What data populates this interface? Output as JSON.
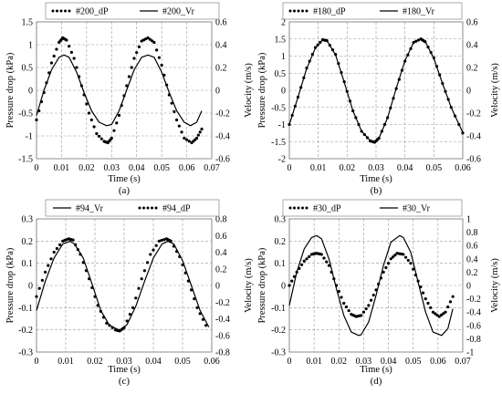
{
  "chart_data": [
    {
      "type": "line",
      "panel_label": "(a)",
      "xlabel": "Time (s)",
      "ylabel_left": "Pressure drop (kPa)",
      "ylabel_right": "Velocity (m/s)",
      "xlim": [
        0,
        0.07
      ],
      "ylim_left": [
        -1.5,
        1.5
      ],
      "ylim_right": [
        -0.6,
        0.6
      ],
      "x_ticks": [
        "0",
        "0.01",
        "0.02",
        "0.03",
        "0.04",
        "0.05",
        "0.06",
        "0.07"
      ],
      "y_ticks_left": [
        "-1.5",
        "-1",
        "-0.5",
        "0",
        "0.5",
        "1",
        "1.5"
      ],
      "y_ticks_right": [
        "-0.6",
        "-0.4",
        "-0.2",
        "0",
        "0.2",
        "0.4",
        "0.6"
      ],
      "grid": true,
      "legend_position": "top",
      "series": [
        {
          "name": "#200_dP",
          "axis": "left",
          "style": "dotted",
          "x": [
            0,
            0.003,
            0.006,
            0.009,
            0.0105,
            0.012,
            0.015,
            0.018,
            0.021,
            0.024,
            0.027,
            0.0285,
            0.03,
            0.033,
            0.036,
            0.039,
            0.042,
            0.0445,
            0.047,
            0.05,
            0.053,
            0.056,
            0.059,
            0.062,
            0.064,
            0.066
          ],
          "y": [
            -0.65,
            -0.05,
            0.6,
            1.05,
            1.15,
            1.1,
            0.7,
            0.1,
            -0.5,
            -0.95,
            -1.12,
            -1.15,
            -1.05,
            -0.55,
            0.1,
            0.7,
            1.08,
            1.15,
            1.05,
            0.55,
            -0.1,
            -0.65,
            -1.05,
            -1.15,
            -1.05,
            -0.85
          ]
        },
        {
          "name": "#200_Vr",
          "axis": "right",
          "style": "solid",
          "x": [
            0,
            0.003,
            0.006,
            0.009,
            0.011,
            0.013,
            0.016,
            0.019,
            0.022,
            0.025,
            0.028,
            0.03,
            0.033,
            0.036,
            0.039,
            0.042,
            0.0445,
            0.047,
            0.05,
            0.053,
            0.056,
            0.059,
            0.0615,
            0.064,
            0.066
          ],
          "y": [
            -0.22,
            0.0,
            0.18,
            0.29,
            0.31,
            0.29,
            0.16,
            -0.02,
            -0.18,
            -0.28,
            -0.31,
            -0.3,
            -0.18,
            0.0,
            0.18,
            0.29,
            0.31,
            0.29,
            0.16,
            -0.02,
            -0.18,
            -0.28,
            -0.31,
            -0.28,
            -0.18
          ]
        }
      ]
    },
    {
      "type": "line",
      "panel_label": "(b)",
      "xlabel": "Time (s)",
      "ylabel_left": "Pressure drop (kPa)",
      "ylabel_right": "Velocity (m/s)",
      "xlim": [
        0,
        0.06
      ],
      "ylim_left": [
        -2,
        2
      ],
      "ylim_right": [
        -0.6,
        0.6
      ],
      "x_ticks": [
        "0",
        "0.01",
        "0.02",
        "0.03",
        "0.04",
        "0.05",
        "0.06"
      ],
      "y_ticks_left": [
        "-2",
        "-1.5",
        "-1",
        "-0.5",
        "0",
        "0.5",
        "1",
        "1.5",
        "2"
      ],
      "y_ticks_right": [
        "-0.6",
        "-0.4",
        "-0.2",
        "0",
        "0.2",
        "0.4",
        "0.6"
      ],
      "grid": true,
      "legend_position": "top",
      "series": [
        {
          "name": "#180_dP",
          "axis": "left",
          "style": "dotted",
          "x": [
            0,
            0.003,
            0.006,
            0.009,
            0.0115,
            0.013,
            0.016,
            0.019,
            0.022,
            0.025,
            0.028,
            0.0295,
            0.031,
            0.034,
            0.037,
            0.04,
            0.043,
            0.0455,
            0.047,
            0.05,
            0.053,
            0.056,
            0.06
          ],
          "y": [
            -1.0,
            -0.2,
            0.65,
            1.25,
            1.48,
            1.45,
            1.05,
            0.25,
            -0.6,
            -1.2,
            -1.48,
            -1.52,
            -1.4,
            -0.8,
            0.05,
            0.85,
            1.4,
            1.5,
            1.42,
            0.95,
            0.2,
            -0.5,
            -1.25
          ]
        },
        {
          "name": "#180_Vr",
          "axis": "right",
          "style": "solid",
          "x": [
            0,
            0.003,
            0.006,
            0.009,
            0.0115,
            0.013,
            0.016,
            0.019,
            0.022,
            0.025,
            0.028,
            0.0295,
            0.031,
            0.034,
            0.037,
            0.04,
            0.043,
            0.0455,
            0.047,
            0.05,
            0.053,
            0.056,
            0.06
          ],
          "y": [
            -0.3,
            -0.06,
            0.19,
            0.37,
            0.44,
            0.435,
            0.31,
            0.07,
            -0.18,
            -0.36,
            -0.44,
            -0.45,
            -0.42,
            -0.24,
            0.02,
            0.26,
            0.42,
            0.45,
            0.43,
            0.28,
            0.06,
            -0.15,
            -0.37
          ]
        }
      ]
    },
    {
      "type": "line",
      "panel_label": "(c)",
      "xlabel": "Time (s)",
      "ylabel_left": "Pressure drop (kPa)",
      "ylabel_right": "Velocity (m/s)",
      "xlim": [
        0,
        0.06
      ],
      "ylim_left": [
        -0.3,
        0.3
      ],
      "ylim_right": [
        -0.8,
        0.8
      ],
      "x_ticks": [
        "0",
        "0.01",
        "0.02",
        "0.03",
        "0.04",
        "0.05",
        "0.06"
      ],
      "y_ticks_left": [
        "-0.3",
        "-0.2",
        "-0.1",
        "0",
        "0.1",
        "0.2",
        "0.3"
      ],
      "y_ticks_right": [
        "-0.8",
        "-0.6",
        "-0.4",
        "-0.2",
        "0",
        "0.2",
        "0.4",
        "0.6",
        "0.8"
      ],
      "grid": true,
      "legend_position": "top",
      "series": [
        {
          "name": "#94_Vr",
          "axis": "right",
          "style": "solid",
          "x": [
            0,
            0.003,
            0.006,
            0.009,
            0.0115,
            0.013,
            0.016,
            0.019,
            0.022,
            0.025,
            0.028,
            0.029,
            0.031,
            0.034,
            0.037,
            0.04,
            0.043,
            0.045,
            0.047,
            0.05,
            0.053,
            0.056,
            0.059
          ],
          "y": [
            -0.3,
            0.05,
            0.33,
            0.5,
            0.53,
            0.5,
            0.33,
            0.02,
            -0.3,
            -0.48,
            -0.53,
            -0.53,
            -0.47,
            -0.25,
            0.05,
            0.33,
            0.5,
            0.53,
            0.5,
            0.3,
            0.0,
            -0.3,
            -0.5
          ]
        },
        {
          "name": "#94_dP",
          "axis": "left",
          "style": "dotted",
          "x": [
            0,
            0.003,
            0.006,
            0.009,
            0.011,
            0.0125,
            0.015,
            0.018,
            0.021,
            0.024,
            0.027,
            0.0285,
            0.03,
            0.033,
            0.036,
            0.039,
            0.042,
            0.0445,
            0.046,
            0.049,
            0.052,
            0.055,
            0.058
          ],
          "y": [
            -0.05,
            0.06,
            0.15,
            0.2,
            0.21,
            0.205,
            0.14,
            0.03,
            -0.09,
            -0.17,
            -0.2,
            -0.205,
            -0.19,
            -0.1,
            0.03,
            0.14,
            0.2,
            0.21,
            0.2,
            0.13,
            0.02,
            -0.1,
            -0.18
          ]
        }
      ]
    },
    {
      "type": "line",
      "panel_label": "(d)",
      "xlabel": "Time (s)",
      "ylabel_left": "Pressure drop (kPa)",
      "ylabel_right": "Velocity (m/s)",
      "xlim": [
        0,
        0.07
      ],
      "ylim_left": [
        -0.3,
        0.3
      ],
      "ylim_right": [
        -1,
        1
      ],
      "x_ticks": [
        "0",
        "0.01",
        "0.02",
        "0.03",
        "0.04",
        "0.05",
        "0.06",
        "0.07"
      ],
      "y_ticks_left": [
        "-0.3",
        "-0.2",
        "-0.1",
        "0",
        "0.1",
        "0.2",
        "0.3"
      ],
      "y_ticks_right": [
        "-1",
        "-0.8",
        "-0.6",
        "-0.4",
        "-0.2",
        "0",
        "0.2",
        "0.4",
        "0.6",
        "0.8",
        "1"
      ],
      "grid": true,
      "legend_position": "top",
      "series": [
        {
          "name": "#30_dP",
          "axis": "left",
          "style": "dotted",
          "x": [
            0,
            0.003,
            0.006,
            0.009,
            0.011,
            0.013,
            0.016,
            0.019,
            0.022,
            0.025,
            0.027,
            0.029,
            0.032,
            0.035,
            0.038,
            0.041,
            0.0435,
            0.046,
            0.049,
            0.052,
            0.055,
            0.058,
            0.0605,
            0.063,
            0.066
          ],
          "y": [
            0.0,
            0.06,
            0.11,
            0.14,
            0.145,
            0.14,
            0.09,
            0.0,
            -0.08,
            -0.13,
            -0.14,
            -0.135,
            -0.09,
            -0.02,
            0.06,
            0.12,
            0.145,
            0.14,
            0.1,
            0.02,
            -0.06,
            -0.12,
            -0.14,
            -0.12,
            -0.05
          ]
        },
        {
          "name": "#30_Vr",
          "axis": "right",
          "style": "solid",
          "x": [
            0,
            0.003,
            0.006,
            0.009,
            0.011,
            0.013,
            0.016,
            0.019,
            0.022,
            0.025,
            0.028,
            0.029,
            0.032,
            0.035,
            0.038,
            0.041,
            0.0445,
            0.046,
            0.049,
            0.052,
            0.055,
            0.058,
            0.0615,
            0.064,
            0.066
          ],
          "y": [
            -0.3,
            0.2,
            0.55,
            0.72,
            0.75,
            0.7,
            0.4,
            -0.05,
            -0.45,
            -0.7,
            -0.75,
            -0.74,
            -0.55,
            -0.15,
            0.3,
            0.65,
            0.75,
            0.72,
            0.5,
            0.05,
            -0.4,
            -0.7,
            -0.75,
            -0.65,
            -0.35
          ]
        }
      ]
    }
  ]
}
